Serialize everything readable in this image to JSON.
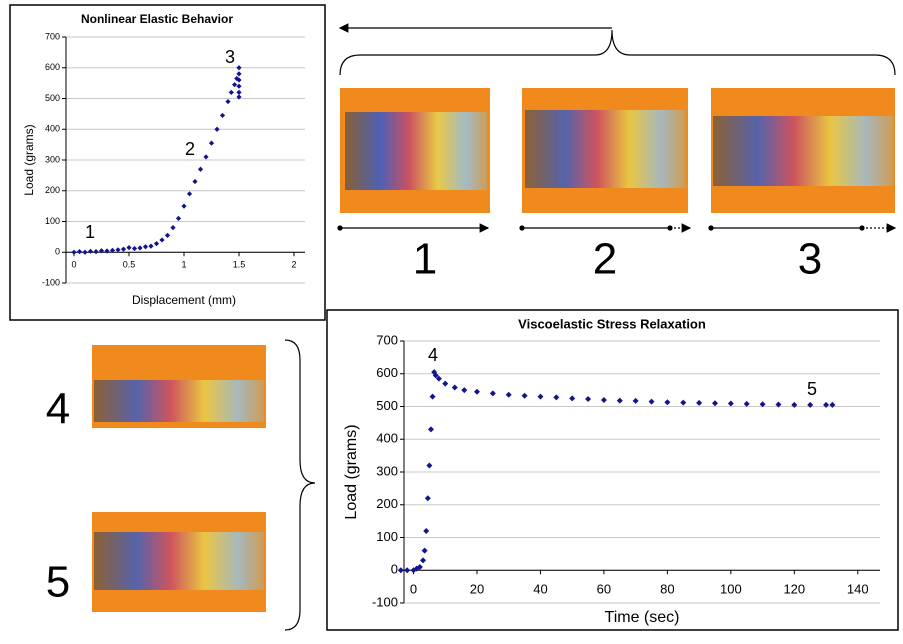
{
  "chart_data": [
    {
      "type": "scatter",
      "title": "Nonlinear Elastic Behavior",
      "x_label": "Displacement (mm)",
      "y_label": "Load (grams)",
      "x": [
        0,
        0.05,
        0.1,
        0.15,
        0.2,
        0.25,
        0.3,
        0.35,
        0.4,
        0.45,
        0.5,
        0.55,
        0.6,
        0.65,
        0.7,
        0.75,
        0.8,
        0.85,
        0.9,
        0.95,
        1.0,
        1.05,
        1.1,
        1.15,
        1.2,
        1.25,
        1.3,
        1.35,
        1.4,
        1.43,
        1.46,
        1.48,
        1.5,
        1.5,
        1.5,
        1.5,
        1.5,
        1.5
      ],
      "values": [
        0,
        2,
        0,
        3,
        2,
        5,
        4,
        6,
        8,
        10,
        15,
        12,
        14,
        18,
        20,
        28,
        40,
        55,
        80,
        110,
        150,
        190,
        230,
        270,
        310,
        355,
        400,
        445,
        490,
        520,
        545,
        565,
        600,
        580,
        560,
        540,
        520,
        505
      ],
      "color": "#14148c",
      "xlim": [
        -0.1,
        2.1
      ],
      "ylim": [
        -100,
        700
      ],
      "xticks": [
        0,
        0.5,
        1,
        1.5,
        2
      ],
      "yticks": [
        -100,
        0,
        100,
        200,
        300,
        400,
        500,
        600,
        700
      ],
      "grid": true,
      "annotations": [
        "1",
        "2",
        "3"
      ]
    },
    {
      "type": "scatter",
      "title": "Viscoelastic Stress Relaxation",
      "x_label": "Time (sec)",
      "y_label": "Load (grams)",
      "x": [
        -4,
        -2,
        0,
        1,
        2,
        3,
        3.5,
        4,
        4.5,
        5,
        5.5,
        6,
        6.5,
        7,
        8,
        10,
        13,
        16,
        20,
        25,
        30,
        35,
        40,
        45,
        50,
        55,
        60,
        65,
        70,
        75,
        80,
        85,
        90,
        95,
        100,
        105,
        110,
        115,
        120,
        125,
        130,
        132
      ],
      "values": [
        0,
        0,
        0,
        5,
        10,
        30,
        60,
        120,
        220,
        320,
        430,
        530,
        605,
        595,
        585,
        570,
        558,
        550,
        545,
        540,
        536,
        533,
        530,
        528,
        525,
        523,
        520,
        518,
        517,
        515,
        513,
        512,
        511,
        510,
        509,
        508,
        507,
        506,
        505,
        505,
        505,
        505
      ],
      "color": "#14148c",
      "xlim": [
        -3,
        147
      ],
      "ylim": [
        -100,
        700
      ],
      "xticks": [
        0,
        20,
        40,
        60,
        80,
        100,
        120,
        140
      ],
      "yticks": [
        -100,
        0,
        100,
        200,
        300,
        400,
        500,
        600,
        700
      ],
      "grid": true,
      "annotations": [
        "4",
        "5"
      ]
    }
  ],
  "panel_labels": [
    "1",
    "2",
    "3",
    "4",
    "5"
  ]
}
